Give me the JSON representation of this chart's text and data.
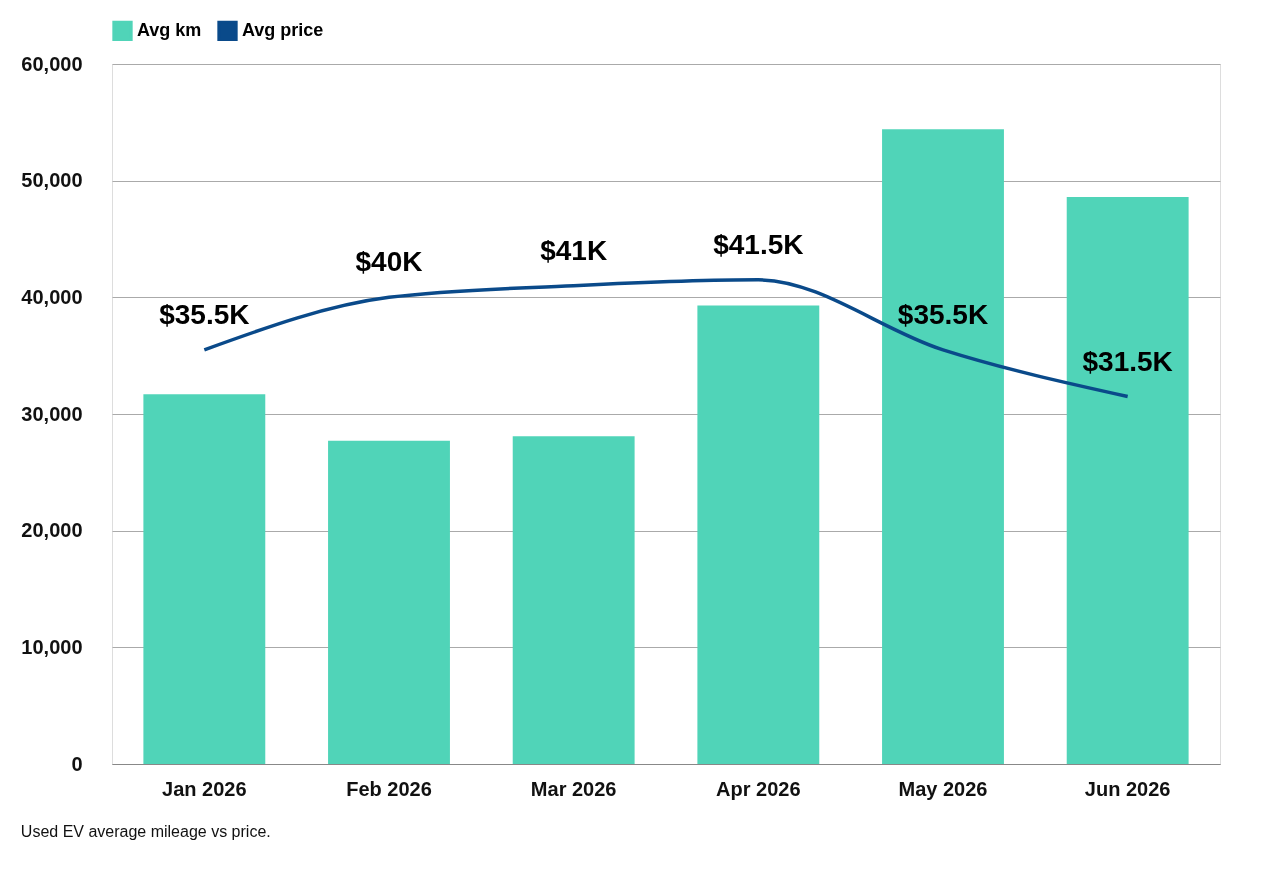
{
  "chart_data": {
    "type": "bar",
    "categories": [
      "Jan 2026",
      "Feb 2026",
      "Mar 2026",
      "Apr 2026",
      "May 2026",
      "Jun 2026"
    ],
    "series": [
      {
        "name": "Avg km",
        "color": "#50d4b8",
        "values": [
          31700,
          27700,
          28100,
          39300,
          54400,
          48600
        ]
      },
      {
        "name": "Avg price",
        "type": "line",
        "color": "#0a4a8a",
        "values": [
          35500,
          40000,
          41000,
          41500,
          35500,
          31500
        ],
        "value_labels": [
          "$35.5K",
          "$40K",
          "$41K",
          "$41.5K",
          "$35.5K",
          "$31.5K"
        ]
      }
    ],
    "ylim": [
      0,
      60000
    ],
    "yticks": [
      0,
      {
        "value": 10000,
        "label": "10,000"
      },
      {
        "value": 20000,
        "label": "20,000"
      },
      {
        "value": 30000,
        "label": "30,000"
      },
      {
        "value": 40000,
        "label": "40,000"
      },
      {
        "value": 50000,
        "label": "50,000"
      },
      {
        "value": 60000,
        "label": "60,000"
      }
    ],
    "grid": "y",
    "legend": "top left",
    "marker": "none",
    "line_style": "solid",
    "annotations": [
      "Used EV average mileage vs price."
    ]
  }
}
